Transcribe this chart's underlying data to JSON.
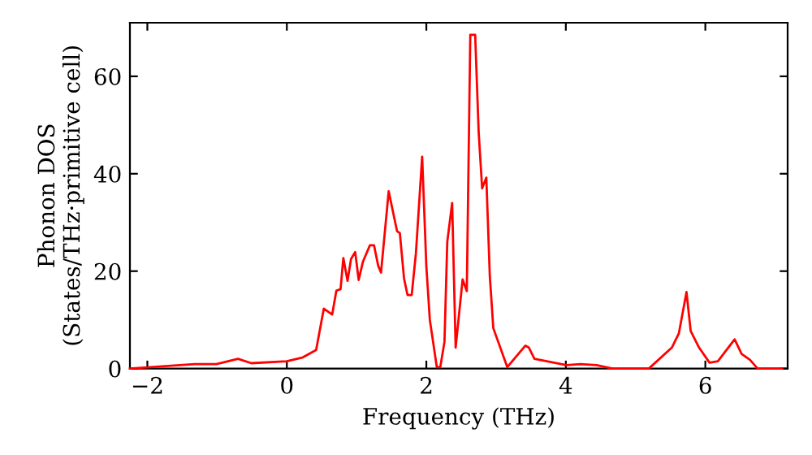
{
  "chart_data": {
    "type": "line",
    "xlabel": "Frequency (THz)",
    "ylabel": "Phonon DOS\n(States/THz·primitive cell)",
    "xlim": [
      -2.25,
      7.18
    ],
    "ylim": [
      0,
      71
    ],
    "xticks": [
      {
        "value": -2,
        "label": "−2"
      },
      0,
      2,
      4,
      6
    ],
    "yticks": [
      0,
      20,
      40,
      60
    ],
    "grid": false,
    "legend": false,
    "marker": "none",
    "line_style": "solid",
    "series": [
      {
        "color": "#ff0000",
        "x": [
          -2.25,
          -1.32,
          -1.01,
          -0.7,
          -0.51,
          0,
          0.23,
          0.42,
          0.53,
          0.65,
          0.71,
          0.77,
          0.81,
          0.87,
          0.92,
          0.98,
          1.03,
          1.09,
          1.19,
          1.25,
          1.31,
          1.35,
          1.46,
          1.58,
          1.62,
          1.68,
          1.73,
          1.79,
          1.85,
          1.94,
          2.0,
          2.05,
          2.15,
          2.2,
          2.26,
          2.3,
          2.37,
          2.42,
          2.52,
          2.58,
          2.63,
          2.7,
          2.75,
          2.8,
          2.86,
          2.91,
          2.96,
          3.16,
          3.42,
          3.47,
          3.55,
          4.01,
          4.21,
          4.44,
          4.67,
          5.19,
          5.52,
          5.62,
          5.73,
          5.79,
          5.91,
          6.06,
          6.18,
          6.42,
          6.52,
          6.64,
          6.75,
          7.1
        ],
        "values": [
          0,
          0.9,
          0.9,
          2,
          1.1,
          1.5,
          2.3,
          3.8,
          12.3,
          11.1,
          16,
          16.3,
          22.7,
          18,
          22.5,
          23.9,
          18.2,
          21.9,
          25.3,
          25.3,
          21.1,
          19.7,
          36.4,
          28.2,
          27.8,
          18.5,
          15.1,
          15.1,
          23.6,
          43.5,
          21,
          10,
          0.3,
          0.3,
          5.5,
          26,
          34,
          4.3,
          18.3,
          15.9,
          68.5,
          68.5,
          48.6,
          37,
          39.2,
          19,
          8.3,
          0.3,
          4.7,
          4.3,
          2,
          0.7,
          0.9,
          0.7,
          0,
          0,
          4.3,
          7.2,
          15.7,
          7.7,
          4.3,
          1.2,
          1.5,
          6,
          3,
          1.8,
          0,
          0
        ]
      }
    ]
  }
}
